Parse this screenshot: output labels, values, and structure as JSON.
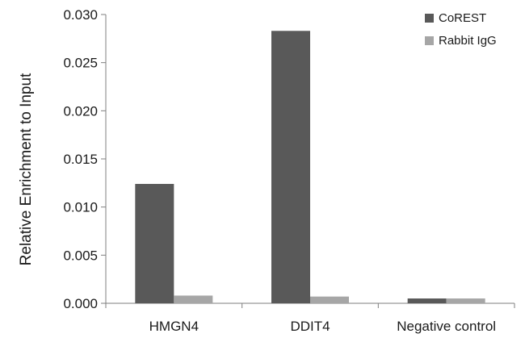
{
  "chart_data": {
    "type": "bar",
    "title": "",
    "xlabel": "",
    "ylabel": "Relative Enrichment to Input",
    "categories": [
      "HMGN4",
      "DDIT4",
      "Negative control"
    ],
    "series": [
      {
        "name": "CoREST",
        "color": "#595959",
        "values": [
          0.0124,
          0.0283,
          0.0005
        ]
      },
      {
        "name": "Rabbit IgG",
        "color": "#a6a6a6",
        "values": [
          0.0008,
          0.0007,
          0.0005
        ]
      }
    ],
    "ylim": [
      0,
      0.03
    ],
    "yticks": [
      "0.000",
      "0.005",
      "0.010",
      "0.015",
      "0.020",
      "0.025",
      "0.030"
    ],
    "grid": false,
    "legend_position": "top-right"
  }
}
